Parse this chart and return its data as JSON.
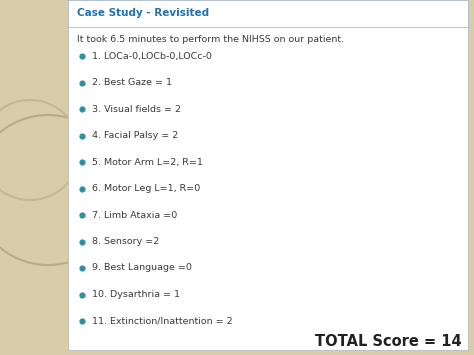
{
  "title": "Case Study - Revisited",
  "title_color": "#1F72B0",
  "title_fontsize": 7.5,
  "intro_text": "It took 6.5 minutes to perform the NIHSS on our patient.",
  "intro_fontsize": 6.8,
  "bullet_items": [
    "1. LOCa-0,LOCb-0,LOCc-0",
    "2. Best Gaze = 1",
    "3. Visual fields = 2",
    "4. Facial Palsy = 2",
    "5. Motor Arm L=2, R=1",
    "6. Motor Leg L=1, R=0",
    "7. Limb Ataxia =0",
    "8. Sensory =2",
    "9. Best Language =0",
    "10. Dysarthria = 1",
    "11. Extinction/Inattention = 2"
  ],
  "bullet_color": "#2E8FA0",
  "bullet_text_color": "#3A3A3A",
  "bullet_fontsize": 6.8,
  "total_text": "TOTAL Score = 14",
  "total_fontsize": 10.5,
  "total_color": "#222222",
  "slide_bg_color": "#D9CCA8",
  "content_box_color": "#FFFFFF",
  "content_box_border": "#BBBBBB",
  "title_box_border": "#AABBCC",
  "circle1_color": "#C8BFA0",
  "circle2_color": "#B8AF90",
  "left_bg_color": "#D9CCA8"
}
